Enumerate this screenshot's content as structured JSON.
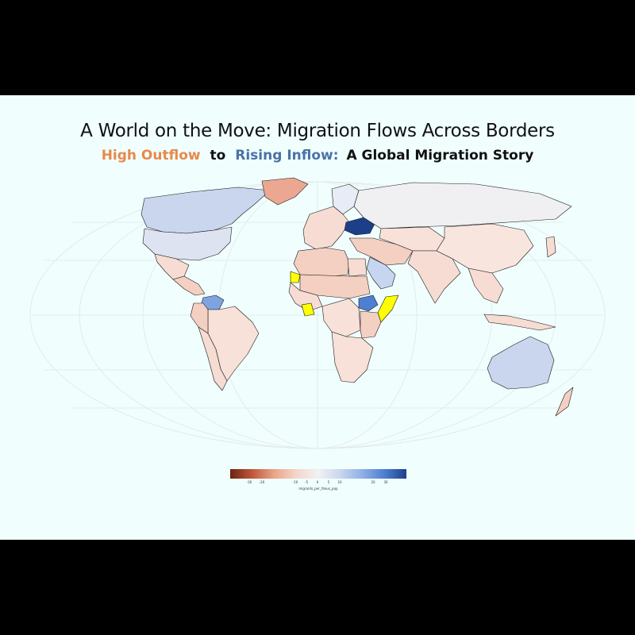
{
  "title": "A World on the Move: Migration Flows Across Borders",
  "subtitle": {
    "outflow": "High Outflow",
    "connector": "to",
    "inflow": "Rising Inflow:",
    "rest": "A Global Migration Story"
  },
  "colors": {
    "outflow_accent": "#e8894a",
    "inflow_accent": "#4a72a6",
    "background": "#f0fefe",
    "highlight": "#ffff00"
  },
  "legend": {
    "title": "migrants_per_thous_pop",
    "ticks": [
      "-30",
      "-20",
      "-10",
      "-5",
      "0",
      "5",
      "10",
      "20",
      "30"
    ]
  },
  "regions": [
    {
      "name": "Canada",
      "fill": "#c9d6ee"
    },
    {
      "name": "Greenland",
      "fill": "#eba791"
    },
    {
      "name": "United States",
      "fill": "#dde3f1"
    },
    {
      "name": "Mexico",
      "fill": "#f6dcd2"
    },
    {
      "name": "Central America",
      "fill": "#f4d0c2"
    },
    {
      "name": "Venezuela",
      "fill": "#7fa3e0"
    },
    {
      "name": "South America",
      "fill": "#f7e1d8"
    },
    {
      "name": "Peru",
      "fill": "#f4d0c2"
    },
    {
      "name": "Chile",
      "fill": "#f6dcd2"
    },
    {
      "name": "Europe",
      "fill": "#f6dcd2"
    },
    {
      "name": "Scandinavia",
      "fill": "#e7ecf6"
    },
    {
      "name": "Ukraine",
      "fill": "#1d3f8a"
    },
    {
      "name": "Russia",
      "fill": "#f0f0f2"
    },
    {
      "name": "Middle East",
      "fill": "#f4d0c2"
    },
    {
      "name": "Saudi Arabia",
      "fill": "#c6d6f0"
    },
    {
      "name": "Egypt",
      "fill": "#f6dcd2"
    },
    {
      "name": "North Africa",
      "fill": "#f4d0c2"
    },
    {
      "name": "West Africa",
      "fill": "#f6dcd2"
    },
    {
      "name": "Sahel",
      "fill": "#f4d0c2"
    },
    {
      "name": "South Sudan",
      "fill": "#4e7fd1"
    },
    {
      "name": "Somalia",
      "fill": "#ffff00"
    },
    {
      "name": "Guinea",
      "fill": "#ffff00"
    },
    {
      "name": "Western Sahara",
      "fill": "#ffff00"
    },
    {
      "name": "Central Africa",
      "fill": "#f7e1d8"
    },
    {
      "name": "East Africa",
      "fill": "#f4d0c2"
    },
    {
      "name": "Southern Africa",
      "fill": "#f7e1d8"
    },
    {
      "name": "Central Asia",
      "fill": "#f7e1d8"
    },
    {
      "name": "China",
      "fill": "#f8e6de"
    },
    {
      "name": "India",
      "fill": "#f6dcd2"
    },
    {
      "name": "Southeast Asia",
      "fill": "#f6dcd2"
    },
    {
      "name": "Japan",
      "fill": "#f6dcd2"
    },
    {
      "name": "Australia",
      "fill": "#c9d6ee"
    },
    {
      "name": "New Zealand",
      "fill": "#f4d0c2"
    }
  ]
}
